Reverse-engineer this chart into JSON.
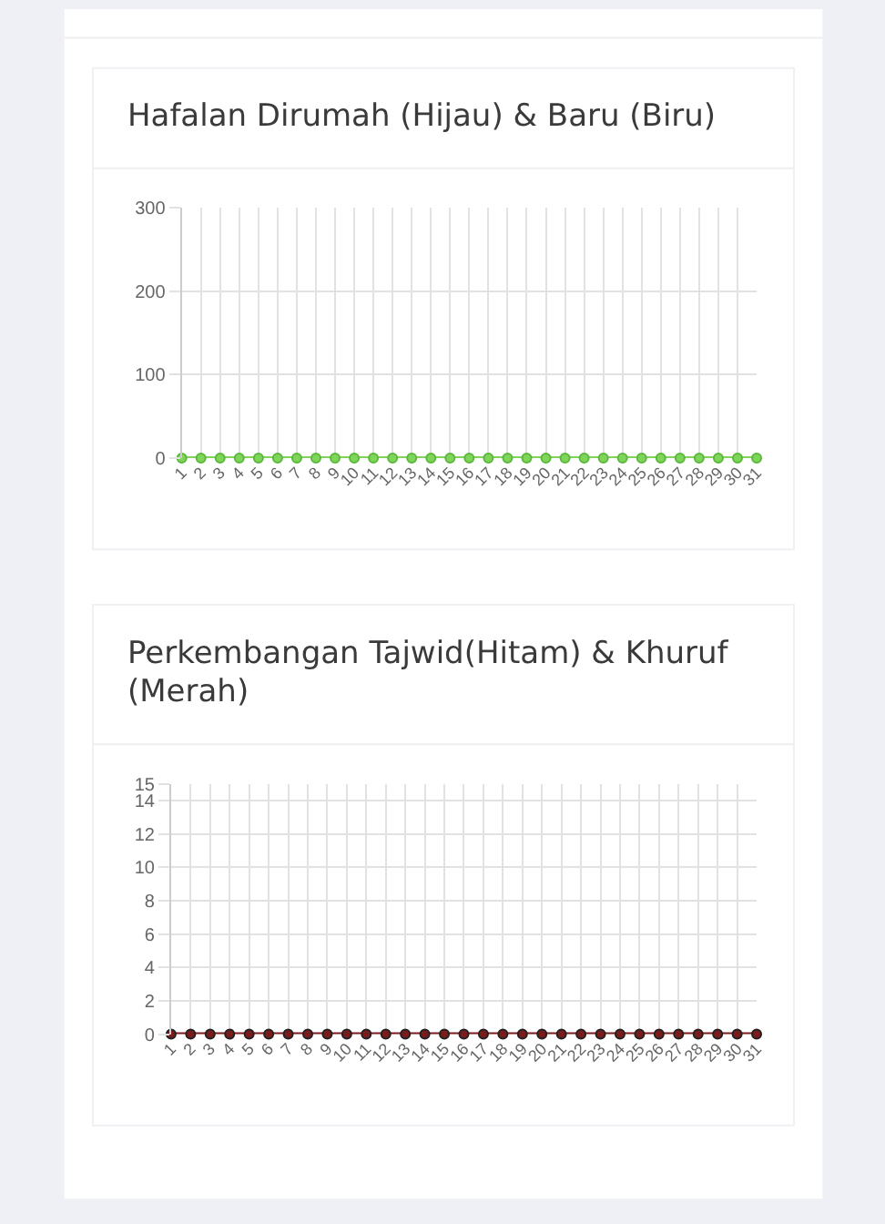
{
  "chart_data": [
    {
      "type": "line",
      "title": "Hafalan Dirumah (Hijau) & Baru (Biru)",
      "categories": [
        "1",
        "2",
        "3",
        "4",
        "5",
        "6",
        "7",
        "8",
        "9",
        "10",
        "11",
        "12",
        "13",
        "14",
        "15",
        "16",
        "17",
        "18",
        "19",
        "20",
        "21",
        "22",
        "23",
        "24",
        "25",
        "26",
        "27",
        "28",
        "29",
        "30",
        "31"
      ],
      "series": [
        {
          "color": "#7fd45a",
          "values": [
            0,
            0,
            0,
            0,
            0,
            0,
            0,
            0,
            0,
            0,
            0,
            0,
            0,
            0,
            0,
            0,
            0,
            0,
            0,
            0,
            0,
            0,
            0,
            0,
            0,
            0,
            0,
            0,
            0,
            0,
            0
          ]
        }
      ],
      "ylim": [
        0,
        300
      ],
      "yticks": [
        0,
        100,
        200,
        300
      ],
      "grid": true,
      "marker": "circle"
    },
    {
      "type": "line",
      "title": "Perkembangan Tajwid(Hitam) & Khuruf (Merah)",
      "categories": [
        "1",
        "2",
        "3",
        "4",
        "5",
        "6",
        "7",
        "8",
        "9",
        "10",
        "11",
        "12",
        "13",
        "14",
        "15",
        "16",
        "17",
        "18",
        "19",
        "20",
        "21",
        "22",
        "23",
        "24",
        "25",
        "26",
        "27",
        "28",
        "29",
        "30",
        "31"
      ],
      "series": [
        {
          "color": "#7a1c1c",
          "values": [
            0,
            0,
            0,
            0,
            0,
            0,
            0,
            0,
            0,
            0,
            0,
            0,
            0,
            0,
            0,
            0,
            0,
            0,
            0,
            0,
            0,
            0,
            0,
            0,
            0,
            0,
            0,
            0,
            0,
            0,
            0
          ]
        }
      ],
      "ylim": [
        0,
        15
      ],
      "yticks": [
        0,
        2,
        4,
        6,
        8,
        10,
        12,
        14,
        15
      ],
      "grid": true,
      "marker": "circle"
    }
  ]
}
